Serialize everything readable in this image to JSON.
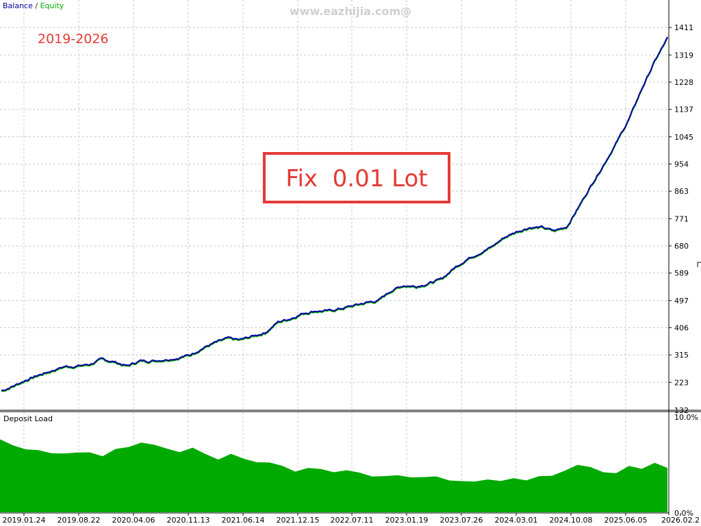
{
  "legend": {
    "balance_label": "Balance",
    "separator": " / ",
    "equity_label": "Equity"
  },
  "watermark": "www.eazhijia.com@",
  "annotations": {
    "period": "2019-2026",
    "lot_box": "Fix  0.01 Lot"
  },
  "colors": {
    "balance": "#0000a0",
    "equity": "#00aa00",
    "deposit_load": "#00aa00",
    "annotation_red": "#e53935",
    "grid": "#c8c8c8"
  },
  "chart_data": [
    {
      "type": "line",
      "title": "",
      "series": [
        {
          "name": "Balance",
          "values": [
            195,
            212,
            232,
            248,
            262,
            276,
            278,
            283,
            300,
            292,
            278,
            295,
            296,
            300,
            305,
            315,
            338,
            356,
            370,
            365,
            378,
            390,
            425,
            437,
            455,
            463,
            462,
            470,
            480,
            490,
            497,
            530,
            548,
            545,
            555,
            568,
            605,
            635,
            656,
            676,
            708,
            728,
            742,
            742,
            730,
            745,
            815,
            888,
            958,
            1030,
            1110,
            1210,
            1299,
            1375
          ]
        },
        {
          "name": "Equity",
          "values": [
            195,
            212,
            232,
            248,
            262,
            276,
            278,
            283,
            300,
            292,
            278,
            295,
            296,
            300,
            305,
            315,
            338,
            356,
            370,
            365,
            378,
            390,
            425,
            437,
            455,
            463,
            462,
            470,
            480,
            490,
            497,
            530,
            548,
            545,
            555,
            568,
            605,
            635,
            656,
            676,
            708,
            728,
            742,
            742,
            730,
            745,
            815,
            888,
            958,
            1030,
            1110,
            1210,
            1299,
            1375
          ]
        }
      ],
      "x_range": [
        0,
        53
      ],
      "ylim": [
        132,
        1503
      ],
      "y_ticks": [
        "223",
        "315",
        "406",
        "497",
        "589",
        "680",
        "771",
        "863",
        "954",
        "1045",
        "1137",
        "1228",
        "1319",
        "1411"
      ],
      "y_tick_bottom": "132",
      "grid": true
    },
    {
      "type": "area",
      "title": "Deposit Load",
      "series": [
        {
          "name": "Deposit Load",
          "values": [
            7.3,
            6.5,
            6.3,
            6.2,
            5.9,
            6.1,
            6.0,
            5.8,
            5.6,
            6.3,
            6.5,
            7.2,
            6.8,
            6.2,
            6.0,
            6.4,
            5.8,
            5.5,
            5.9,
            5.2,
            5.0,
            4.9,
            4.6,
            4.3,
            4.5,
            4.2,
            4.0,
            4.1,
            3.9,
            3.8,
            3.7,
            3.6,
            3.5,
            3.4,
            3.5,
            3.4,
            3.2,
            3.0,
            3.3,
            3.0,
            3.3,
            3.4,
            3.7,
            3.6,
            4.2,
            4.6,
            4.4,
            4.2,
            4.0,
            4.6,
            4.4,
            4.8,
            4.3
          ]
        }
      ],
      "ylim": [
        0,
        10
      ],
      "y_ticks": [
        "10.0%",
        "0.0%"
      ],
      "grid": true
    }
  ],
  "x_axis": {
    "tick_labels": [
      "2019.01.24",
      "2019.08.22",
      "2020.04.06",
      "2020.11.13",
      "2021.06.14",
      "2021.12.15",
      "2022.07.11",
      "2023.01.19",
      "2023.07.26",
      "2024.03.01",
      "2024.10.08",
      "2025.06.05",
      "2026.02.2"
    ]
  }
}
